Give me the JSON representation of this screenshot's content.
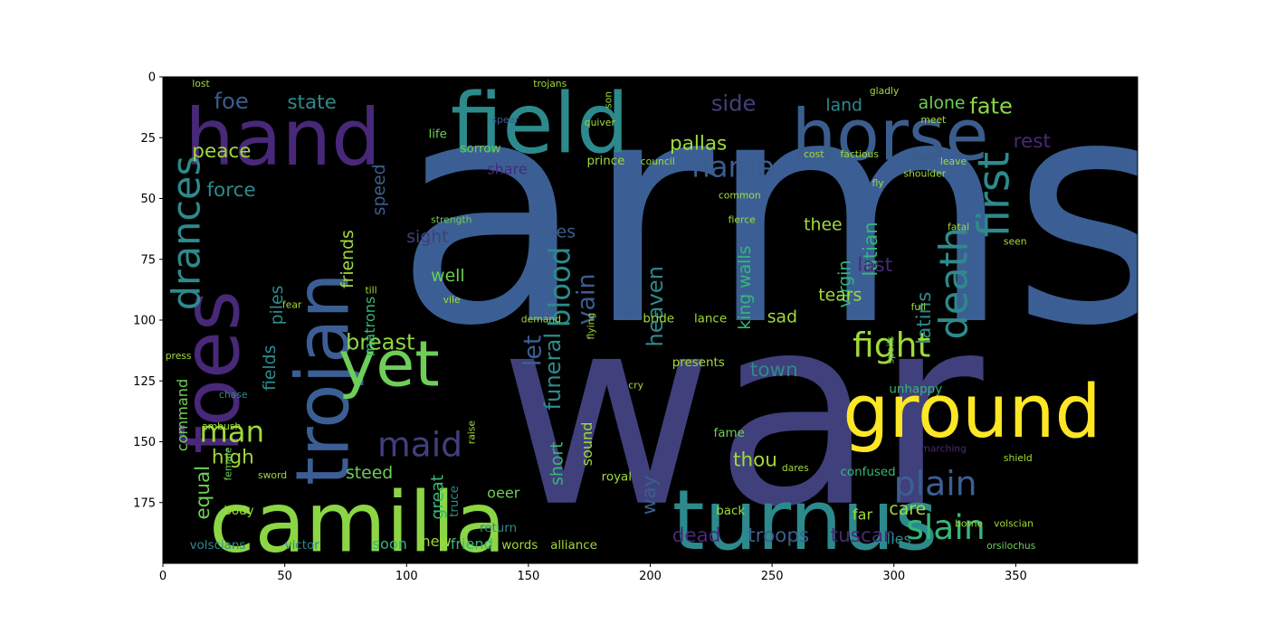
{
  "chart_data": {
    "type": "image",
    "xlim": [
      0,
      400
    ],
    "ylim": [
      200,
      0
    ],
    "xticks": [
      0,
      50,
      100,
      150,
      200,
      250,
      300,
      350
    ],
    "yticks": [
      0,
      25,
      50,
      75,
      100,
      125,
      150,
      175
    ],
    "background": "#000000",
    "words": [
      {
        "text": "arms",
        "x": 95,
        "y": 100,
        "s": 128,
        "r": 0,
        "c": "#3b5f94"
      },
      {
        "text": "war",
        "x": 138,
        "y": 175,
        "s": 108,
        "r": 0,
        "c": "#40407c"
      },
      {
        "text": "hand",
        "x": 9,
        "y": 36,
        "s": 32,
        "r": 0,
        "c": "#482878"
      },
      {
        "text": "field",
        "x": 118,
        "y": 31,
        "s": 34,
        "r": 0,
        "c": "#2d8a8c"
      },
      {
        "text": "horse",
        "x": 258,
        "y": 34,
        "s": 29,
        "r": 0,
        "c": "#3b5d8e"
      },
      {
        "text": "foes",
        "x": 31,
        "y": 155,
        "s": 32,
        "r": -90,
        "c": "#482878"
      },
      {
        "text": "trojan",
        "x": 76,
        "y": 168,
        "s": 30,
        "r": -90,
        "c": "#3b5f94"
      },
      {
        "text": "camilla",
        "x": 19,
        "y": 195,
        "s": 34,
        "r": 0,
        "c": "#8cd645"
      },
      {
        "text": "turnus",
        "x": 209,
        "y": 194,
        "s": 34,
        "r": 0,
        "c": "#2d8a8c"
      },
      {
        "text": "ground",
        "x": 279,
        "y": 148,
        "s": 30,
        "r": 0,
        "c": "#fde725"
      },
      {
        "text": "yet",
        "x": 72,
        "y": 127,
        "s": 26,
        "r": 0,
        "c": "#6ece58"
      },
      {
        "text": "plain",
        "x": 300,
        "y": 172,
        "s": 14,
        "r": 0,
        "c": "#3b5f94"
      },
      {
        "text": "slain",
        "x": 305,
        "y": 190,
        "s": 14,
        "r": 0,
        "c": "#35b779"
      },
      {
        "text": "fight",
        "x": 283,
        "y": 115,
        "s": 14,
        "r": 0,
        "c": "#a0da39"
      },
      {
        "text": "death",
        "x": 330,
        "y": 108,
        "s": 16,
        "r": -90,
        "c": "#2d8a8c"
      },
      {
        "text": "first",
        "x": 347,
        "y": 66,
        "s": 18,
        "r": -90,
        "c": "#2d8a8c"
      },
      {
        "text": "drances",
        "x": 15,
        "y": 96,
        "s": 16,
        "r": -90,
        "c": "#2d8a8c"
      },
      {
        "text": "name",
        "x": 217,
        "y": 41,
        "s": 12,
        "r": 0,
        "c": "#3b5d8e"
      },
      {
        "text": "maid",
        "x": 88,
        "y": 156,
        "s": 14,
        "r": 0,
        "c": "#40407c"
      },
      {
        "text": "man",
        "x": 15,
        "y": 150,
        "s": 12,
        "r": 0,
        "c": "#a0da39"
      },
      {
        "text": "blood",
        "x": 167,
        "y": 103,
        "s": 12,
        "r": -90,
        "c": "#2d8a8c"
      },
      {
        "text": "breast",
        "x": 75,
        "y": 112,
        "s": 9,
        "r": 0,
        "c": "#8cd645"
      },
      {
        "text": "fate",
        "x": 331,
        "y": 15,
        "s": 9,
        "r": 0,
        "c": "#8cd645"
      },
      {
        "text": "rest",
        "x": 349,
        "y": 29,
        "s": 8,
        "r": 0,
        "c": "#482878"
      },
      {
        "text": "foe",
        "x": 21,
        "y": 13,
        "s": 9,
        "r": 0,
        "c": "#3b5d8e"
      },
      {
        "text": "state",
        "x": 51,
        "y": 13,
        "s": 8,
        "r": 0,
        "c": "#2d8a8c"
      },
      {
        "text": "side",
        "x": 225,
        "y": 14,
        "s": 9,
        "r": 0,
        "c": "#40407c"
      },
      {
        "text": "land",
        "x": 272,
        "y": 14,
        "s": 7,
        "r": 0,
        "c": "#2d8a8c"
      },
      {
        "text": "alone",
        "x": 310,
        "y": 13,
        "s": 7,
        "r": 0,
        "c": "#6ece58"
      },
      {
        "text": "pallas",
        "x": 208,
        "y": 30,
        "s": 8,
        "r": 0,
        "c": "#a0da39"
      },
      {
        "text": "peace",
        "x": 12,
        "y": 33,
        "s": 8,
        "r": 0,
        "c": "#a0da39"
      },
      {
        "text": "force",
        "x": 18,
        "y": 49,
        "s": 8,
        "r": 0,
        "c": "#2d8a8c"
      },
      {
        "text": "speed",
        "x": 91,
        "y": 57,
        "s": 7,
        "r": -90,
        "c": "#3b5d8e"
      },
      {
        "text": "let",
        "x": 155,
        "y": 119,
        "s": 10,
        "r": -90,
        "c": "#3b5f94"
      },
      {
        "text": "vain",
        "x": 177,
        "y": 102,
        "s": 10,
        "r": -90,
        "c": "#3b5d8e"
      },
      {
        "text": "heaven",
        "x": 205,
        "y": 111,
        "s": 9,
        "r": -90,
        "c": "#2d8a8c"
      },
      {
        "text": "funeral",
        "x": 163,
        "y": 137,
        "s": 9,
        "r": -90,
        "c": "#2d8a8c"
      },
      {
        "text": "latian",
        "x": 293,
        "y": 82,
        "s": 8,
        "r": -90,
        "c": "#35b779"
      },
      {
        "text": "latins",
        "x": 315,
        "y": 110,
        "s": 8,
        "r": -90,
        "c": "#2d8a8c"
      },
      {
        "text": "virgin",
        "x": 282,
        "y": 95,
        "s": 7,
        "r": -90,
        "c": "#35b779"
      },
      {
        "text": "last",
        "x": 285,
        "y": 80,
        "s": 8,
        "r": 0,
        "c": "#482878"
      },
      {
        "text": "thee",
        "x": 263,
        "y": 63,
        "s": 7,
        "r": 0,
        "c": "#a0da39"
      },
      {
        "text": "town",
        "x": 241,
        "y": 123,
        "s": 8,
        "r": 0,
        "c": "#2d8a8c"
      },
      {
        "text": "thou",
        "x": 234,
        "y": 160,
        "s": 8,
        "r": 0,
        "c": "#a0da39"
      },
      {
        "text": "tears",
        "x": 269,
        "y": 92,
        "s": 7,
        "r": 0,
        "c": "#a0da39"
      },
      {
        "text": "sad",
        "x": 248,
        "y": 101,
        "s": 7,
        "r": 0,
        "c": "#a0da39"
      },
      {
        "text": "king walls",
        "x": 241,
        "y": 104,
        "s": 7,
        "r": -90,
        "c": "#35b779"
      },
      {
        "text": "high",
        "x": 20,
        "y": 159,
        "s": 8,
        "r": 0,
        "c": "#a0da39"
      },
      {
        "text": "fields",
        "x": 46,
        "y": 129,
        "s": 7,
        "r": -90,
        "c": "#2d8a8c"
      },
      {
        "text": "piles",
        "x": 49,
        "y": 102,
        "s": 7,
        "r": -90,
        "c": "#2d8a8c"
      },
      {
        "text": "friends",
        "x": 78,
        "y": 87,
        "s": 7,
        "r": -90,
        "c": "#a0da39"
      },
      {
        "text": "matrons",
        "x": 87,
        "y": 115,
        "s": 6,
        "r": -90,
        "c": "#35b779"
      },
      {
        "text": "sight",
        "x": 100,
        "y": 68,
        "s": 7,
        "r": 0,
        "c": "#40407c"
      },
      {
        "text": "eyes",
        "x": 153,
        "y": 66,
        "s": 7,
        "r": 0,
        "c": "#3b5d8e"
      },
      {
        "text": "well",
        "x": 110,
        "y": 84,
        "s": 7,
        "r": 0,
        "c": "#6ece58"
      },
      {
        "text": "flight",
        "x": 194,
        "y": 98,
        "s": 6,
        "r": -90,
        "c": "#3b5d8e"
      },
      {
        "text": "command",
        "x": 10,
        "y": 154,
        "s": 6,
        "r": -90,
        "c": "#6ece58"
      },
      {
        "text": "equal",
        "x": 19,
        "y": 182,
        "s": 8,
        "r": -90,
        "c": "#6ece58"
      },
      {
        "text": "steed",
        "x": 75,
        "y": 165,
        "s": 7,
        "r": 0,
        "c": "#6ece58"
      },
      {
        "text": "great",
        "x": 115,
        "y": 182,
        "s": 7,
        "r": -90,
        "c": "#35b779"
      },
      {
        "text": "oeer",
        "x": 133,
        "y": 173,
        "s": 6,
        "r": 0,
        "c": "#6ece58"
      },
      {
        "text": "short",
        "x": 164,
        "y": 168,
        "s": 7,
        "r": -90,
        "c": "#35b779"
      },
      {
        "text": "sound",
        "x": 176,
        "y": 160,
        "s": 6,
        "r": -90,
        "c": "#a0da39"
      },
      {
        "text": "way",
        "x": 202,
        "y": 180,
        "s": 8,
        "r": -90,
        "c": "#3b5d8e"
      },
      {
        "text": "dead",
        "x": 209,
        "y": 191,
        "s": 8,
        "r": 0,
        "c": "#482878"
      },
      {
        "text": "troops",
        "x": 240,
        "y": 191,
        "s": 8,
        "r": 0,
        "c": "#3b5d8e"
      },
      {
        "text": "tuscan",
        "x": 274,
        "y": 191,
        "s": 8,
        "r": 0,
        "c": "#482878"
      },
      {
        "text": "care",
        "x": 298,
        "y": 180,
        "s": 7,
        "r": 0,
        "c": "#a0da39"
      },
      {
        "text": "lies",
        "x": 297,
        "y": 192,
        "s": 6,
        "r": 0,
        "c": "#2d8a8c"
      },
      {
        "text": "share",
        "x": 133,
        "y": 40,
        "s": 6,
        "r": 0,
        "c": "#482878"
      },
      {
        "text": "sorrow",
        "x": 122,
        "y": 31,
        "s": 5,
        "r": 0,
        "c": "#6ece58"
      },
      {
        "text": "prince",
        "x": 174,
        "y": 36,
        "s": 5,
        "r": 0,
        "c": "#a0da39"
      },
      {
        "text": "council",
        "x": 196,
        "y": 36,
        "s": 4,
        "r": 0,
        "c": "#a0da39"
      },
      {
        "text": "bride",
        "x": 197,
        "y": 101,
        "s": 5,
        "r": 0,
        "c": "#a0da39"
      },
      {
        "text": "lance",
        "x": 218,
        "y": 101,
        "s": 5,
        "r": 0,
        "c": "#a0da39"
      },
      {
        "text": "presents",
        "x": 209,
        "y": 119,
        "s": 5,
        "r": 0,
        "c": "#a0da39"
      },
      {
        "text": "unhappy",
        "x": 298,
        "y": 130,
        "s": 5,
        "r": 0,
        "c": "#35b779"
      },
      {
        "text": "fame",
        "x": 226,
        "y": 148,
        "s": 5,
        "r": 0,
        "c": "#6ece58"
      },
      {
        "text": "confused",
        "x": 278,
        "y": 164,
        "s": 5,
        "r": 0,
        "c": "#35b779"
      },
      {
        "text": "royal",
        "x": 180,
        "y": 166,
        "s": 5,
        "r": 0,
        "c": "#a0da39"
      },
      {
        "text": "dares",
        "x": 254,
        "y": 162,
        "s": 4,
        "r": 0,
        "c": "#a0da39"
      },
      {
        "text": "far",
        "x": 283,
        "y": 182,
        "s": 6,
        "r": 0,
        "c": "#a0da39"
      },
      {
        "text": "soon",
        "x": 86,
        "y": 194,
        "s": 6,
        "r": 0,
        "c": "#35b779"
      },
      {
        "text": "new",
        "x": 106,
        "y": 193,
        "s": 6,
        "r": 0,
        "c": "#a0da39"
      },
      {
        "text": "friend",
        "x": 118,
        "y": 194,
        "s": 6,
        "r": 0,
        "c": "#35b779"
      },
      {
        "text": "words",
        "x": 139,
        "y": 194,
        "s": 5,
        "r": 0,
        "c": "#a0da39"
      },
      {
        "text": "alliance",
        "x": 159,
        "y": 194,
        "s": 5,
        "r": 0,
        "c": "#a0da39"
      },
      {
        "text": "victor",
        "x": 50,
        "y": 194,
        "s": 5,
        "r": 0,
        "c": "#2d8a8c"
      },
      {
        "text": "volscians",
        "x": 11,
        "y": 194,
        "s": 5,
        "r": 0,
        "c": "#2d8a8c"
      },
      {
        "text": "body",
        "x": 25,
        "y": 180,
        "s": 5,
        "r": 0,
        "c": "#a0da39"
      },
      {
        "text": "sword",
        "x": 39,
        "y": 165,
        "s": 4,
        "r": 0,
        "c": "#a0da39"
      },
      {
        "text": "female",
        "x": 28,
        "y": 166,
        "s": 4,
        "r": -90,
        "c": "#6ece58"
      },
      {
        "text": "ambush",
        "x": 16,
        "y": 145,
        "s": 4,
        "r": 0,
        "c": "#a0da39"
      },
      {
        "text": "chase",
        "x": 23,
        "y": 132,
        "s": 4,
        "r": 0,
        "c": "#2d8a8c"
      },
      {
        "text": "press",
        "x": 1,
        "y": 116,
        "s": 4,
        "r": 0,
        "c": "#a0da39"
      },
      {
        "text": "return",
        "x": 130,
        "y": 187,
        "s": 5,
        "r": 0,
        "c": "#2d8a8c"
      },
      {
        "text": "truce",
        "x": 121,
        "y": 181,
        "s": 5,
        "r": -90,
        "c": "#2d8a8c"
      },
      {
        "text": "back",
        "x": 227,
        "y": 180,
        "s": 5,
        "r": 0,
        "c": "#a0da39"
      },
      {
        "text": "borne",
        "x": 325,
        "y": 185,
        "s": 4,
        "r": 0,
        "c": "#a0da39"
      },
      {
        "text": "volscian",
        "x": 341,
        "y": 185,
        "s": 4,
        "r": 0,
        "c": "#a0da39"
      },
      {
        "text": "shield",
        "x": 345,
        "y": 158,
        "s": 4,
        "r": 0,
        "c": "#a0da39"
      },
      {
        "text": "orsilochus",
        "x": 338,
        "y": 194,
        "s": 4,
        "r": 0,
        "c": "#6ece58"
      },
      {
        "text": "lost",
        "x": 12,
        "y": 4,
        "s": 4,
        "r": 0,
        "c": "#a0da39"
      },
      {
        "text": "trojans",
        "x": 152,
        "y": 4,
        "s": 4,
        "r": 0,
        "c": "#a0da39"
      },
      {
        "text": "son",
        "x": 184,
        "y": 13,
        "s": 4,
        "r": -90,
        "c": "#a0da39"
      },
      {
        "text": "spear",
        "x": 135,
        "y": 19,
        "s": 4,
        "r": 0,
        "c": "#3b5d8e"
      },
      {
        "text": "quiver",
        "x": 173,
        "y": 20,
        "s": 4,
        "r": 0,
        "c": "#a0da39"
      },
      {
        "text": "life",
        "x": 109,
        "y": 25,
        "s": 5,
        "r": 0,
        "c": "#6ece58"
      },
      {
        "text": "gladly",
        "x": 290,
        "y": 7,
        "s": 4,
        "r": 0,
        "c": "#a0da39"
      },
      {
        "text": "meet",
        "x": 311,
        "y": 19,
        "s": 4,
        "r": 0,
        "c": "#a0da39"
      },
      {
        "text": "leave",
        "x": 319,
        "y": 36,
        "s": 4,
        "r": 0,
        "c": "#a0da39"
      },
      {
        "text": "fly",
        "x": 291,
        "y": 45,
        "s": 4,
        "r": 0,
        "c": "#a0da39"
      },
      {
        "text": "shoulder",
        "x": 304,
        "y": 41,
        "s": 4,
        "r": 0,
        "c": "#a0da39"
      },
      {
        "text": "factious",
        "x": 278,
        "y": 33,
        "s": 4,
        "r": 0,
        "c": "#a0da39"
      },
      {
        "text": "cost",
        "x": 263,
        "y": 33,
        "s": 4,
        "r": 0,
        "c": "#a0da39"
      },
      {
        "text": "common",
        "x": 228,
        "y": 50,
        "s": 4,
        "r": 0,
        "c": "#a0da39"
      },
      {
        "text": "fierce",
        "x": 232,
        "y": 60,
        "s": 4,
        "r": 0,
        "c": "#a0da39"
      },
      {
        "text": "strength",
        "x": 110,
        "y": 60,
        "s": 4,
        "r": 0,
        "c": "#6ece58"
      },
      {
        "text": "fatal",
        "x": 322,
        "y": 63,
        "s": 4,
        "r": 0,
        "c": "#a0da39"
      },
      {
        "text": "seen",
        "x": 345,
        "y": 69,
        "s": 4,
        "r": 0,
        "c": "#a0da39"
      },
      {
        "text": "vile",
        "x": 115,
        "y": 93,
        "s": 4,
        "r": 0,
        "c": "#a0da39"
      },
      {
        "text": "demand",
        "x": 147,
        "y": 101,
        "s": 4,
        "r": 0,
        "c": "#a0da39"
      },
      {
        "text": "till",
        "x": 83,
        "y": 89,
        "s": 4,
        "r": 0,
        "c": "#a0da39"
      },
      {
        "text": "fear",
        "x": 49,
        "y": 95,
        "s": 4,
        "r": 0,
        "c": "#a0da39"
      },
      {
        "text": "full",
        "x": 307,
        "y": 96,
        "s": 4,
        "r": 0,
        "c": "#a0da39"
      },
      {
        "text": "cry",
        "x": 191,
        "y": 128,
        "s": 4,
        "r": 0,
        "c": "#a0da39"
      },
      {
        "text": "spoils",
        "x": 300,
        "y": 118,
        "s": 4,
        "r": -90,
        "c": "#6ece58"
      },
      {
        "text": "raise",
        "x": 128,
        "y": 151,
        "s": 4,
        "r": -90,
        "c": "#a0da39"
      },
      {
        "text": "marching",
        "x": 311,
        "y": 154,
        "s": 4,
        "r": 0,
        "c": "#482878"
      },
      {
        "text": "flying",
        "x": 177,
        "y": 108,
        "s": 4,
        "r": -90,
        "c": "#a0da39"
      }
    ]
  }
}
